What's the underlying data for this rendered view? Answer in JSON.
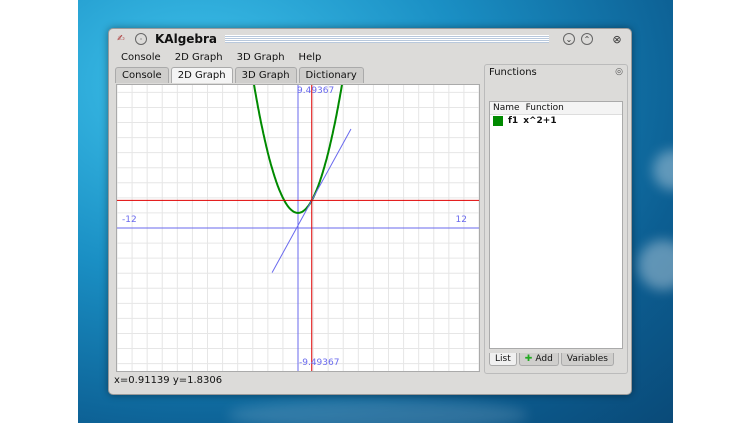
{
  "window": {
    "title": "KAlgebra"
  },
  "menu": [
    "Console",
    "2D Graph",
    "3D Graph",
    "Help"
  ],
  "tabs": [
    "Console",
    "2D Graph",
    "3D Graph",
    "Dictionary"
  ],
  "active_tab": "2D Graph",
  "graph": {
    "x_min_label": "-12",
    "x_max_label": "12",
    "y_max_label": "9.49367",
    "y_min_label": "-9.49367",
    "xlim": [
      -12,
      12
    ],
    "ylim": [
      -9.49367,
      9.49367
    ],
    "axis_color": "#6a6aee",
    "curve_color": "#008a00",
    "cursor_color": "#e00000",
    "cursor": {
      "x": 0.91139,
      "y": 1.8306
    }
  },
  "status": "x=0.91139 y=1.8306",
  "functions_panel": {
    "title": "Functions",
    "columns": [
      "Name",
      "Function"
    ],
    "items": [
      {
        "name": "f1",
        "function": "x^2+1",
        "color": "#008a00"
      }
    ],
    "bottom_tabs": [
      "List",
      "Add",
      "Variables"
    ]
  }
}
